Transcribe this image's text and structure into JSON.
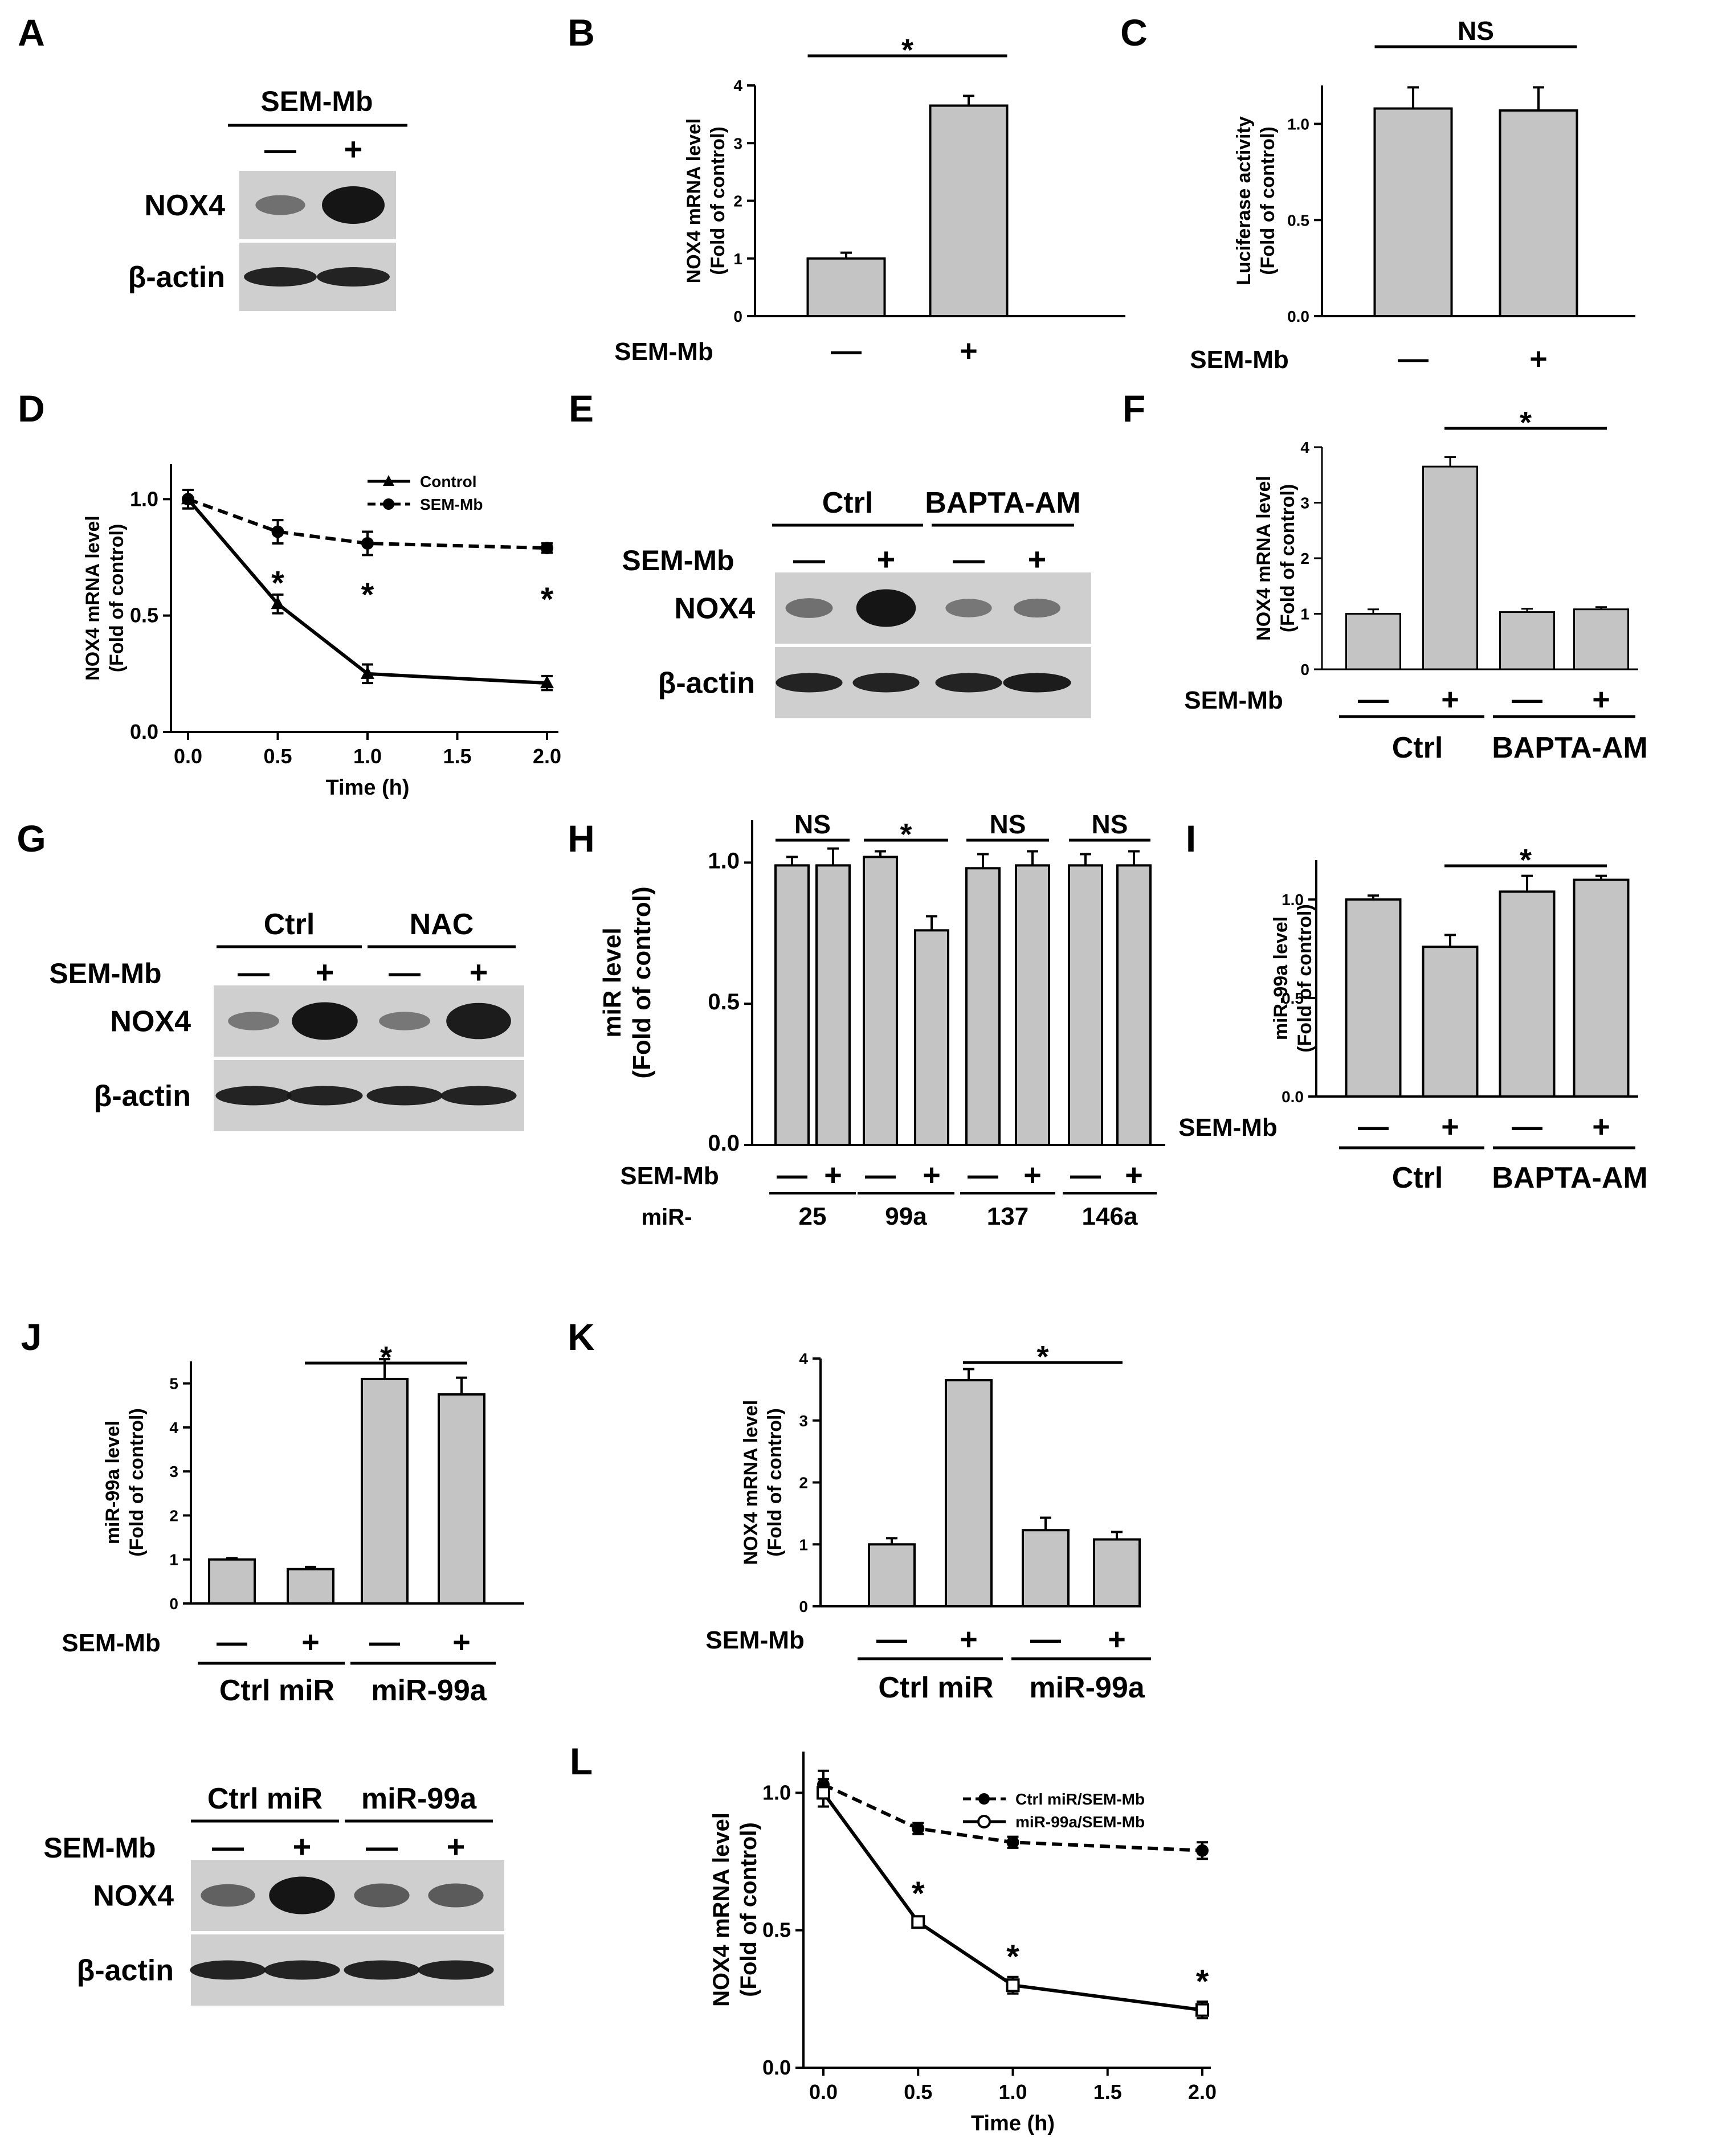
{
  "figure": {
    "panel_letters": [
      "A",
      "B",
      "C",
      "D",
      "E",
      "F",
      "G",
      "H",
      "I",
      "J",
      "K",
      "L"
    ]
  },
  "symbols": {
    "minus": "—",
    "plus": "+",
    "star": "*",
    "ns": "NS"
  },
  "colors": {
    "bar_fill": "#c4c4c4",
    "stroke": "#000000",
    "blot_bg": "#cfcfcf",
    "band": "#151515"
  },
  "blots": {
    "A": {
      "header": "SEM-Mb",
      "treatment_label": "",
      "lanes": [
        "—",
        "+"
      ],
      "rows": [
        {
          "label": "NOX4",
          "intensities": [
            0.35,
            1.0
          ]
        },
        {
          "label": "β-actin",
          "intensities": [
            0.9,
            0.9
          ]
        }
      ]
    },
    "E": {
      "groups": [
        "Ctrl",
        "BAPTA-AM"
      ],
      "treatment_label": "SEM-Mb",
      "lanes": [
        "—",
        "+",
        "—",
        "+"
      ],
      "rows": [
        {
          "label": "NOX4",
          "intensities": [
            0.35,
            1.0,
            0.3,
            0.32
          ]
        },
        {
          "label": "β-actin",
          "intensities": [
            0.9,
            0.9,
            0.9,
            0.95
          ]
        }
      ]
    },
    "G": {
      "groups": [
        "Ctrl",
        "NAC"
      ],
      "treatment_label": "SEM-Mb",
      "lanes": [
        "—",
        "+",
        "—",
        "+"
      ],
      "rows": [
        {
          "label": "NOX4",
          "intensities": [
            0.3,
            1.0,
            0.3,
            0.95
          ]
        },
        {
          "label": "β-actin",
          "intensities": [
            0.9,
            0.9,
            0.9,
            0.9
          ]
        }
      ]
    },
    "J2": {
      "groups": [
        "Ctrl miR",
        "miR-99a"
      ],
      "treatment_label": "SEM-Mb",
      "lanes": [
        "—",
        "+",
        "—",
        "+"
      ],
      "rows": [
        {
          "label": "NOX4",
          "intensities": [
            0.45,
            1.0,
            0.5,
            0.5
          ]
        },
        {
          "label": "β-actin",
          "intensities": [
            0.9,
            0.9,
            0.9,
            0.9
          ]
        }
      ]
    }
  },
  "chart_data": [
    {
      "panel": "B",
      "type": "bar",
      "ylabel": [
        "NOX4 mRNA level",
        "(Fold of control)"
      ],
      "ylim": [
        0,
        4
      ],
      "yticks": [
        "0",
        "1",
        "2",
        "3",
        "4"
      ],
      "treatment_label": "SEM-Mb",
      "treatment": [
        "—",
        "+"
      ],
      "values": [
        1.0,
        3.65
      ],
      "errors": [
        0.1,
        0.17
      ],
      "sig": [
        {
          "from": 0,
          "to": 1,
          "label": "*"
        }
      ],
      "groups": []
    },
    {
      "panel": "C",
      "type": "bar",
      "ylabel": [
        "Luciferase activity",
        "(Fold of control)"
      ],
      "ylim": [
        0,
        1.2
      ],
      "yticks": [
        "0.0",
        "0.5",
        "1.0"
      ],
      "treatment_label": "SEM-Mb",
      "treatment": [
        "—",
        "+"
      ],
      "values": [
        1.08,
        1.07
      ],
      "errors": [
        0.11,
        0.12
      ],
      "sig": [
        {
          "from": 0,
          "to": 1,
          "label": "NS"
        }
      ],
      "groups": []
    },
    {
      "panel": "D",
      "type": "line",
      "ylabel": [
        "NOX4 mRNA level",
        "(Fold of control)"
      ],
      "xlabel": "Time (h)",
      "xlim": [
        -0.1,
        2.1
      ],
      "ylim": [
        0,
        1.15
      ],
      "xticks": [
        "0.0",
        "0.5",
        "1.0",
        "1.5",
        "2.0"
      ],
      "yticks": [
        "0.0",
        "0.5",
        "1.0"
      ],
      "series": [
        {
          "name": "Control",
          "x": [
            0,
            0.5,
            1,
            2
          ],
          "y": [
            1.0,
            0.55,
            0.25,
            0.21
          ],
          "errors": [
            0.04,
            0.04,
            0.04,
            0.03
          ],
          "dashed": false
        },
        {
          "name": "SEM-Mb",
          "x": [
            0,
            0.5,
            1,
            2
          ],
          "y": [
            1.0,
            0.86,
            0.81,
            0.79
          ],
          "errors": [
            0.04,
            0.05,
            0.05,
            0.02
          ],
          "dashed": true
        }
      ],
      "stars": [
        {
          "x": 0.5,
          "label": "*"
        },
        {
          "x": 1.0,
          "label": "*"
        },
        {
          "x": 2.0,
          "label": "*"
        }
      ]
    },
    {
      "panel": "F",
      "type": "bar",
      "ylabel": [
        "NOX4 mRNA level",
        "(Fold of control)"
      ],
      "ylim": [
        0,
        4
      ],
      "yticks": [
        "0",
        "1",
        "2",
        "3",
        "4"
      ],
      "treatment_label": "SEM-Mb",
      "treatment": [
        "—",
        "+",
        "—",
        "+"
      ],
      "values": [
        1.0,
        3.65,
        1.03,
        1.08
      ],
      "errors": [
        0.08,
        0.17,
        0.06,
        0.04
      ],
      "sig": [
        {
          "from": 1,
          "to": 3,
          "label": "*"
        }
      ],
      "groups": [
        "Ctrl",
        "BAPTA-AM"
      ]
    },
    {
      "panel": "H",
      "type": "bar",
      "ylabel": [
        "miR level",
        "(Fold of control)"
      ],
      "ylim": [
        0,
        1.15
      ],
      "yticks": [
        "0.0",
        "0.5",
        "1.0"
      ],
      "treatment_label": "SEM-Mb",
      "treatment": [
        "—",
        "+",
        "—",
        "+",
        "—",
        "+",
        "—",
        "+"
      ],
      "values": [
        0.99,
        0.99,
        1.02,
        0.76,
        0.98,
        0.99,
        0.99,
        0.99
      ],
      "errors": [
        0.03,
        0.06,
        0.02,
        0.05,
        0.05,
        0.05,
        0.04,
        0.05
      ],
      "sig": [
        {
          "from": 0,
          "to": 1,
          "label": "NS"
        },
        {
          "from": 2,
          "to": 3,
          "label": "*"
        },
        {
          "from": 4,
          "to": 5,
          "label": "NS"
        },
        {
          "from": 6,
          "to": 7,
          "label": "NS"
        }
      ],
      "row_label": "miR-",
      "groups": [
        "25",
        "99a",
        "137",
        "146a"
      ]
    },
    {
      "panel": "I",
      "type": "bar",
      "ylabel": [
        "miR-99a level",
        "(Fold of control)"
      ],
      "ylim": [
        0,
        1.2
      ],
      "yticks": [
        "0.0",
        "0.5",
        "1.0"
      ],
      "treatment_label": "SEM-Mb",
      "treatment": [
        "—",
        "+",
        "—",
        "+"
      ],
      "values": [
        1.0,
        0.76,
        1.04,
        1.1
      ],
      "errors": [
        0.02,
        0.06,
        0.08,
        0.02
      ],
      "sig": [
        {
          "from": 1,
          "to": 3,
          "label": "*"
        }
      ],
      "groups": [
        "Ctrl",
        "BAPTA-AM"
      ]
    },
    {
      "panel": "J",
      "type": "bar",
      "ylabel": [
        "miR-99a level",
        "(Fold of control)"
      ],
      "ylim": [
        0,
        5.5
      ],
      "yticks": [
        "0",
        "1",
        "2",
        "3",
        "4",
        "5"
      ],
      "treatment_label": "SEM-Mb",
      "treatment": [
        "—",
        "+",
        "—",
        "+"
      ],
      "values": [
        1.0,
        0.78,
        5.1,
        4.75
      ],
      "errors": [
        0.03,
        0.05,
        0.45,
        0.38
      ],
      "sig": [
        {
          "from": 1,
          "to": 3,
          "label": "*"
        }
      ],
      "groups": [
        "Ctrl miR",
        "miR-99a"
      ]
    },
    {
      "panel": "K",
      "type": "bar",
      "ylabel": [
        "NOX4 mRNA level",
        "(Fold of control)"
      ],
      "ylim": [
        0,
        4
      ],
      "yticks": [
        "0",
        "1",
        "2",
        "3",
        "4"
      ],
      "treatment_label": "SEM-Mb",
      "treatment": [
        "—",
        "+",
        "—",
        "+"
      ],
      "values": [
        1.0,
        3.65,
        1.23,
        1.08
      ],
      "errors": [
        0.1,
        0.18,
        0.2,
        0.12
      ],
      "sig": [
        {
          "from": 1,
          "to": 3,
          "label": "*"
        }
      ],
      "groups": [
        "Ctrl miR",
        "miR-99a"
      ]
    },
    {
      "panel": "L",
      "type": "line",
      "ylabel": [
        "NOX4 mRNA level",
        "(Fold of control)"
      ],
      "xlabel": "Time (h)",
      "xlim": [
        -0.1,
        2.1
      ],
      "ylim": [
        0,
        1.15
      ],
      "xticks": [
        "0.0",
        "0.5",
        "1.0",
        "1.5",
        "2.0"
      ],
      "yticks": [
        "0.0",
        "0.5",
        "1.0"
      ],
      "series": [
        {
          "name": "Ctrl miR/SEM-Mb",
          "x": [
            0,
            0.5,
            1,
            2
          ],
          "y": [
            1.03,
            0.87,
            0.82,
            0.79
          ],
          "errors": [
            0.05,
            0.02,
            0.02,
            0.03
          ],
          "dashed": true,
          "filled": true
        },
        {
          "name": "miR-99a/SEM-Mb",
          "x": [
            0,
            0.5,
            1,
            2
          ],
          "y": [
            1.0,
            0.53,
            0.3,
            0.21
          ],
          "errors": [
            0.05,
            0.02,
            0.03,
            0.03
          ],
          "dashed": false,
          "filled": false
        }
      ],
      "stars": [
        {
          "x": 0.5,
          "label": "*"
        },
        {
          "x": 1.0,
          "label": "*"
        },
        {
          "x": 2.0,
          "label": "*"
        }
      ]
    }
  ]
}
